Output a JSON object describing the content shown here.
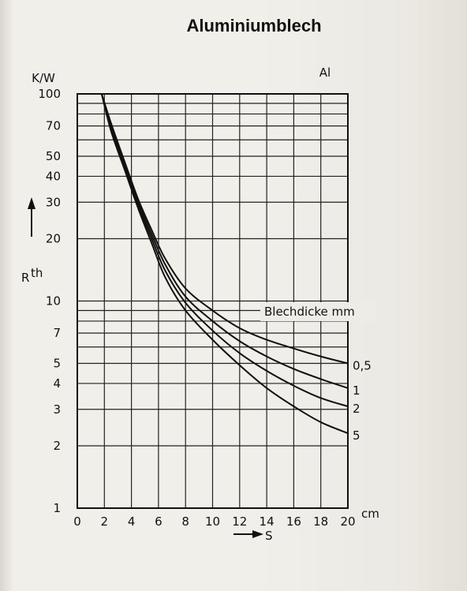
{
  "chart_data": {
    "type": "line",
    "title": "Aluminiumblech",
    "material_label": "Al",
    "y_unit_label": "K/W",
    "y_axis_symbol": "R",
    "y_axis_subscript": "th",
    "x_axis_symbol": "S",
    "x_unit_label": "cm",
    "legend_title": "Blechdicke mm",
    "x_ticks": [
      "0",
      "2",
      "4",
      "6",
      "8",
      "10",
      "12",
      "14",
      "16",
      "18",
      "20"
    ],
    "y_ticks": [
      "100",
      "70",
      "50",
      "40",
      "30",
      "20",
      "10",
      "7",
      "5",
      "4",
      "3",
      "2",
      "1"
    ],
    "y_tick_values": [
      100,
      70,
      50,
      40,
      30,
      20,
      10,
      7,
      5,
      4,
      3,
      2,
      1
    ],
    "xlim": [
      0,
      20
    ],
    "ylim": [
      1,
      100
    ],
    "y_scale": "log",
    "grid": true,
    "series": [
      {
        "name": "0,5",
        "x": [
          1.8,
          2.5,
          3.5,
          4.5,
          5.5,
          6.5,
          8,
          10,
          12,
          14,
          16,
          18,
          20
        ],
        "y": [
          100,
          72,
          47,
          31,
          22,
          16,
          11.5,
          9,
          7.4,
          6.5,
          5.9,
          5.4,
          5.0
        ]
      },
      {
        "name": "1",
        "x": [
          1.8,
          2.5,
          3.5,
          4.5,
          5.5,
          6.5,
          8,
          10,
          12,
          14,
          16,
          18,
          20
        ],
        "y": [
          100,
          70,
          46,
          30,
          21,
          15,
          10.5,
          8.0,
          6.4,
          5.4,
          4.7,
          4.2,
          3.8
        ]
      },
      {
        "name": "2",
        "x": [
          1.8,
          2.5,
          3.5,
          4.5,
          5.5,
          6.5,
          8,
          10,
          12,
          14,
          16,
          18,
          20
        ],
        "y": [
          100,
          68,
          44,
          29,
          20,
          14,
          9.8,
          7.2,
          5.6,
          4.6,
          3.9,
          3.4,
          3.1
        ]
      },
      {
        "name": "5",
        "x": [
          1.8,
          2.5,
          3.5,
          4.5,
          5.5,
          6.5,
          8,
          10,
          12,
          14,
          16,
          18,
          20
        ],
        "y": [
          100,
          66,
          43,
          28,
          19,
          13,
          9.0,
          6.5,
          4.9,
          3.8,
          3.1,
          2.6,
          2.3
        ]
      }
    ]
  }
}
